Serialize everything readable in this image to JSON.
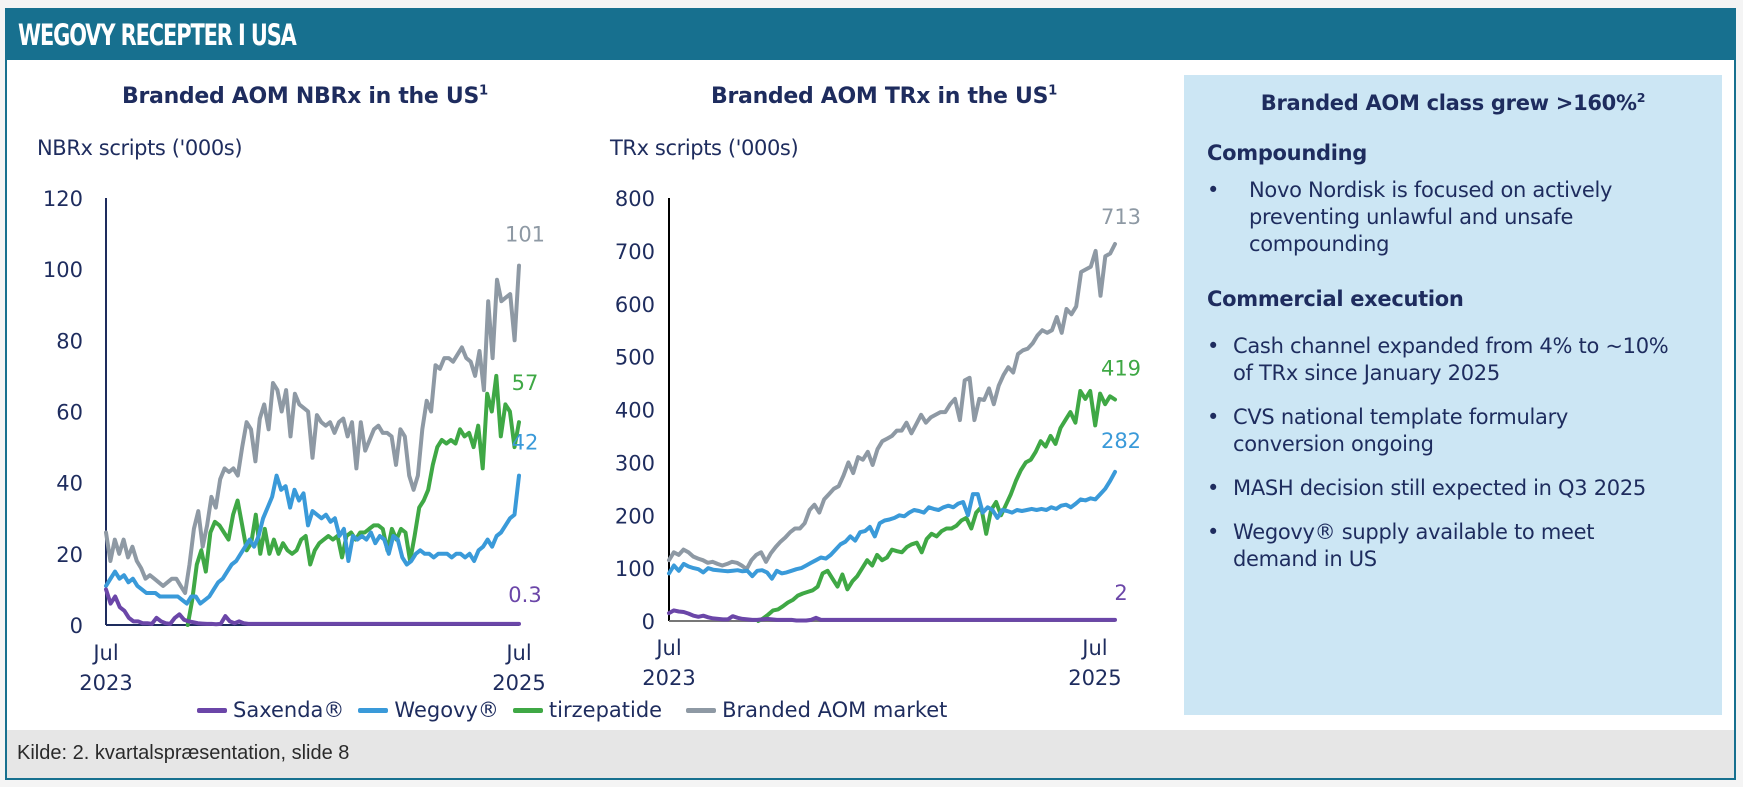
{
  "header": {
    "title": "WEGOVY RECEPTER I USA"
  },
  "footer": {
    "source": "Kilde: 2. kvartalspræsentation, slide 8"
  },
  "colors": {
    "header_bg": "#17708f",
    "saxenda": "#6b46a8",
    "wegovy": "#3a9ad9",
    "tirzepatide": "#3fa845",
    "market": "#8e99a4",
    "text": "#1e2c5e",
    "info_bg": "#cce6f4"
  },
  "legend": {
    "items": [
      {
        "label": "Saxenda®",
        "color": "#6b46a8"
      },
      {
        "label": "Wegovy®",
        "color": "#3a9ad9"
      },
      {
        "label": "tirzepatide",
        "color": "#3fa845"
      },
      {
        "label": "Branded AOM market",
        "color": "#8e99a4"
      }
    ]
  },
  "info_panel": {
    "title": "Branded AOM class grew >160%",
    "title_sup": "2",
    "sections": [
      {
        "heading": "Compounding",
        "bullets": [
          [
            "Novo Nordisk is focused on actively",
            "preventing unlawful and unsafe",
            "compounding"
          ]
        ]
      },
      {
        "heading": "Commercial execution",
        "bullets": [
          [
            "Cash channel expanded from 4% to ~10%",
            "of TRx since January 2025"
          ],
          [
            "CVS national template formulary",
            "conversion ongoing"
          ],
          [
            "MASH decision still expected in Q3 2025"
          ],
          [
            "Wegovy® supply available to meet",
            "demand in US"
          ]
        ]
      }
    ]
  },
  "chart_data": [
    {
      "type": "line",
      "title": "Branded AOM NBRx in the US",
      "title_sup": "1",
      "ylabel": "NBRx scripts ('000s)",
      "xlabel": "",
      "ylim": [
        0,
        120
      ],
      "yticks": [
        0,
        20,
        40,
        60,
        80,
        100,
        120
      ],
      "xticks": [
        {
          "pos": 0,
          "label": [
            "Jul",
            "2023"
          ]
        },
        {
          "pos": 1,
          "label": [
            "Jul",
            "2025"
          ]
        }
      ],
      "x_range": [
        "Jul 2023",
        "Jul 2025"
      ],
      "grid": false,
      "legend": "bottom",
      "series": [
        {
          "name": "Branded AOM market",
          "color": "#8e99a4",
          "end_label": "101",
          "values": [
            26,
            18,
            24,
            20,
            24,
            19,
            22,
            18,
            16,
            13,
            14,
            13,
            12,
            11,
            12,
            13,
            13,
            11,
            9,
            17,
            27,
            32,
            22,
            28,
            36,
            33,
            41,
            44,
            43,
            44,
            42,
            50,
            57,
            55,
            46,
            58,
            62,
            55,
            68,
            66,
            60,
            66,
            53,
            65,
            62,
            61,
            60,
            47,
            59,
            57,
            56,
            57,
            54,
            57,
            58,
            53,
            57,
            44,
            57,
            49,
            52,
            55,
            56,
            54,
            54,
            53,
            45,
            55,
            53,
            42,
            38,
            42,
            55,
            63,
            60,
            73,
            72,
            75,
            75,
            74,
            76,
            78,
            75,
            74,
            70,
            77,
            66,
            91,
            75,
            97,
            91,
            92,
            93,
            80,
            101
          ]
        },
        {
          "name": "tirzepatide",
          "color": "#3fa845",
          "end_label": "57",
          "values": [
            null,
            null,
            null,
            null,
            null,
            null,
            null,
            null,
            null,
            null,
            null,
            null,
            null,
            null,
            null,
            null,
            null,
            null,
            0,
            7,
            17,
            21,
            15,
            26,
            29,
            28,
            26,
            24,
            31,
            35,
            28,
            21,
            23,
            31,
            20,
            27,
            20,
            24,
            20,
            23,
            21,
            20,
            21,
            24,
            25,
            17,
            21,
            23,
            24,
            25,
            24,
            25,
            19,
            25,
            26,
            24,
            26,
            26,
            27,
            28,
            28,
            27,
            21,
            27,
            24,
            27,
            26,
            18,
            25,
            33,
            35,
            38,
            45,
            50,
            52,
            51,
            52,
            51,
            55,
            53,
            54,
            50,
            56,
            44,
            65,
            60,
            70,
            53,
            62,
            60,
            50,
            57
          ]
        },
        {
          "name": "Wegovy®",
          "color": "#3a9ad9",
          "end_label": "42",
          "values": [
            11,
            13,
            15,
            13,
            14,
            12,
            13,
            11,
            10,
            9,
            9,
            9,
            8,
            8,
            8,
            8,
            8,
            7,
            6,
            8,
            8,
            6,
            7,
            8,
            10,
            12,
            13,
            15,
            17,
            18,
            20,
            22,
            24,
            22,
            25,
            30,
            33,
            36,
            42,
            38,
            39,
            33,
            38,
            35,
            37,
            28,
            32,
            31,
            30,
            31,
            29,
            30,
            25,
            27,
            18,
            25,
            24,
            25,
            24,
            26,
            23,
            25,
            24,
            20,
            25,
            24,
            19,
            17,
            18,
            20,
            21,
            20,
            20,
            19,
            20,
            20,
            20,
            19,
            20,
            20,
            19,
            20,
            18,
            21,
            22,
            24,
            22,
            25,
            26,
            28,
            30,
            31,
            42
          ]
        },
        {
          "name": "Saxenda®",
          "color": "#6b46a8",
          "end_label": "0.3",
          "values": [
            10,
            6,
            8,
            5,
            4,
            2,
            1,
            1,
            0.5,
            0.5,
            0.3,
            2,
            1,
            0.5,
            0.3,
            2,
            3,
            1.5,
            1,
            0.8,
            0.5,
            0.4,
            0.3,
            0.3,
            0.2,
            0.3,
            2.5,
            1,
            0.5,
            1,
            0.5,
            0.3,
            0.3,
            0.3,
            0.3,
            0.3,
            0.3,
            0.3,
            0.3,
            0.3,
            0.3,
            0.3,
            0.3,
            0.3,
            0.3,
            0.3,
            0.3,
            0.3,
            0.3,
            0.3,
            0.3,
            0.3,
            0.3,
            0.3,
            0.3,
            0.3,
            0.3,
            0.3,
            0.3,
            0.3,
            0.3,
            0.3,
            0.3,
            0.3,
            0.3,
            0.3,
            0.3,
            0.3,
            0.3,
            0.3,
            0.3,
            0.3,
            0.3,
            0.3,
            0.3,
            0.3,
            0.3,
            0.3,
            0.3,
            0.3,
            0.3,
            0.3,
            0.3,
            0.3,
            0.3,
            0.3,
            0.3,
            0.3,
            0.3,
            0.3,
            0.3
          ]
        }
      ]
    },
    {
      "type": "line",
      "title": "Branded AOM TRx in the US",
      "title_sup": "1",
      "ylabel": "TRx scripts ('000s)",
      "xlabel": "",
      "ylim": [
        0,
        800
      ],
      "yticks": [
        0,
        100,
        200,
        300,
        400,
        500,
        600,
        700,
        800
      ],
      "xticks": [
        {
          "pos": 0,
          "label": [
            "Jul",
            "2023"
          ]
        },
        {
          "pos": 0.955,
          "label": [
            "Jul",
            "2025"
          ]
        }
      ],
      "x_range": [
        "Jul 2023",
        "Jul 2025"
      ],
      "grid": false,
      "legend": "bottom",
      "series": [
        {
          "name": "Branded AOM market",
          "color": "#8e99a4",
          "end_label": "713",
          "values": [
            115,
            130,
            125,
            135,
            130,
            122,
            118,
            115,
            110,
            112,
            108,
            105,
            108,
            112,
            110,
            105,
            98,
            115,
            125,
            130,
            112,
            128,
            140,
            150,
            158,
            168,
            175,
            175,
            185,
            210,
            220,
            205,
            230,
            240,
            250,
            255,
            275,
            300,
            280,
            310,
            305,
            320,
            295,
            325,
            340,
            345,
            350,
            360,
            360,
            375,
            355,
            372,
            390,
            375,
            385,
            390,
            395,
            395,
            410,
            420,
            380,
            455,
            460,
            380,
            420,
            418,
            440,
            410,
            445,
            465,
            480,
            470,
            505,
            512,
            515,
            525,
            540,
            550,
            545,
            550,
            575,
            545,
            590,
            580,
            595,
            660,
            665,
            670,
            700,
            615,
            690,
            695,
            713
          ]
        },
        {
          "name": "tirzepatide",
          "color": "#3fa845",
          "end_label": "419",
          "values": [
            null,
            null,
            null,
            null,
            null,
            null,
            null,
            null,
            null,
            null,
            null,
            null,
            null,
            null,
            null,
            null,
            null,
            null,
            0,
            5,
            12,
            20,
            22,
            28,
            35,
            40,
            48,
            52,
            55,
            58,
            65,
            90,
            95,
            80,
            65,
            88,
            60,
            75,
            85,
            100,
            115,
            105,
            125,
            115,
            120,
            135,
            132,
            130,
            140,
            145,
            148,
            130,
            155,
            165,
            160,
            170,
            175,
            175,
            180,
            190,
            195,
            175,
            205,
            215,
            165,
            210,
            225,
            200,
            220,
            240,
            265,
            285,
            300,
            305,
            320,
            340,
            330,
            350,
            335,
            365,
            380,
            395,
            375,
            435,
            420,
            435,
            370,
            430,
            410,
            425,
            419
          ]
        },
        {
          "name": "Wegovy®",
          "color": "#3a9ad9",
          "end_label": "282",
          "values": [
            90,
            105,
            95,
            108,
            103,
            100,
            98,
            92,
            100,
            97,
            96,
            95,
            94,
            95,
            96,
            94,
            95,
            85,
            95,
            96,
            92,
            80,
            95,
            90,
            92,
            95,
            98,
            100,
            105,
            110,
            115,
            120,
            118,
            125,
            135,
            145,
            150,
            160,
            152,
            168,
            170,
            178,
            160,
            185,
            190,
            192,
            195,
            200,
            198,
            205,
            210,
            208,
            205,
            215,
            212,
            210,
            215,
            218,
            215,
            222,
            225,
            200,
            240,
            240,
            205,
            215,
            210,
            195,
            210,
            208,
            205,
            210,
            208,
            210,
            212,
            210,
            212,
            210,
            215,
            212,
            218,
            220,
            215,
            222,
            230,
            228,
            232,
            230,
            240,
            250,
            265,
            282
          ]
        },
        {
          "name": "Saxenda®",
          "color": "#6b46a8",
          "end_label": "2",
          "values": [
            15,
            20,
            18,
            17,
            14,
            10,
            8,
            10,
            7,
            5,
            4,
            3,
            3,
            9,
            6,
            4,
            3,
            2,
            2,
            3,
            4,
            3,
            2,
            2,
            2,
            2,
            1,
            1,
            1,
            2,
            6,
            2,
            2,
            2,
            2,
            2,
            2,
            2,
            2,
            2,
            2,
            2,
            2,
            2,
            2,
            2,
            2,
            2,
            2,
            2,
            2,
            2,
            2,
            2,
            2,
            2,
            2,
            2,
            2,
            2,
            2,
            2,
            2,
            2,
            2,
            2,
            2,
            2,
            2,
            2,
            2,
            2,
            2,
            2,
            2,
            2,
            2,
            2,
            2,
            2,
            2,
            2,
            2,
            2,
            2,
            2,
            2,
            2,
            2,
            2,
            2,
            2
          ]
        }
      ]
    }
  ]
}
